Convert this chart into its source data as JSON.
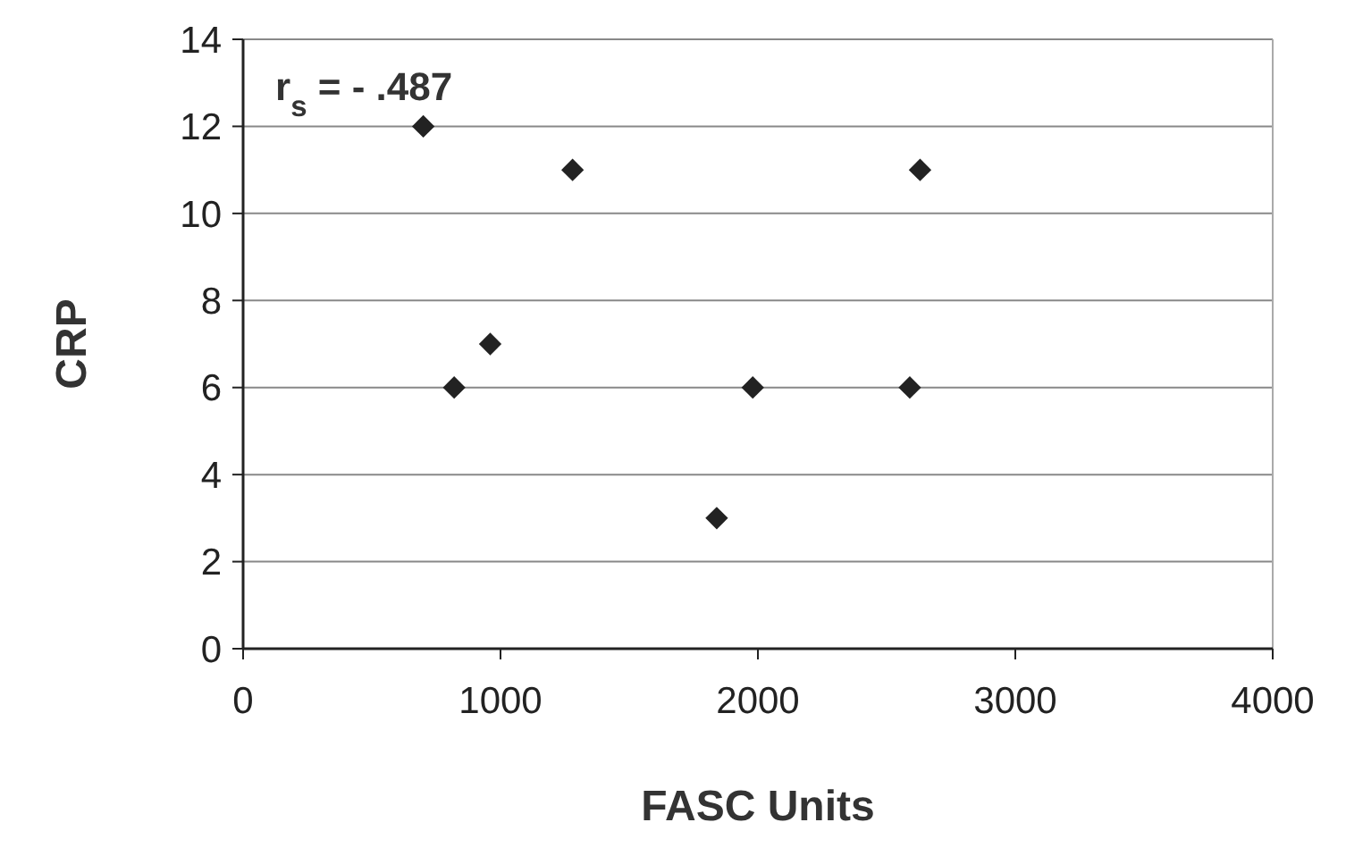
{
  "chart_data": {
    "type": "scatter",
    "xlabel": "FASC Units",
    "ylabel": "CRP",
    "x": [
      700,
      1280,
      2630,
      960,
      820,
      1980,
      2590,
      1840
    ],
    "values": [
      12,
      11,
      11,
      7,
      6,
      6,
      6,
      3
    ],
    "color": "#222222",
    "marker": "diamond",
    "xlim": [
      0,
      4000
    ],
    "xticks": [
      0,
      1000,
      2000,
      3000,
      4000
    ],
    "ylim": [
      0,
      14
    ],
    "yticks": [
      0,
      2,
      4,
      6,
      8,
      10,
      12,
      14
    ],
    "grid": "y",
    "annotations": [
      "r$_{s}$ = - .487"
    ]
  }
}
